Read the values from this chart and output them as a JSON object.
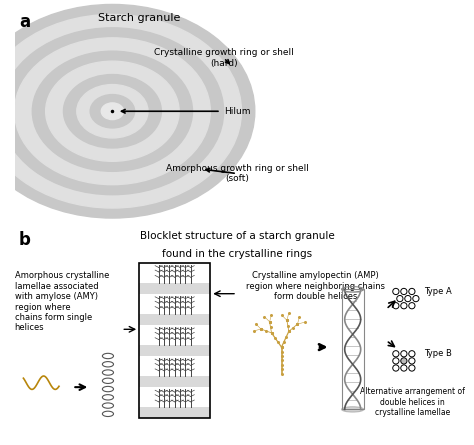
{
  "title_a": "Starch granule",
  "label_a": "a",
  "label_b": "b",
  "title_b1": "Blocklet structure of a starch granule",
  "title_b2": "found in the crystalline rings",
  "annotation_crystalline": "Crystalline growth ring or shell\n(hard)",
  "annotation_hilum": "Hilum",
  "annotation_amorphous": "Amorphous growth ring or shell\n(soft)",
  "annotation_amy_label": "Amorphous crystalline\nlamellae associated\nwith amylose (AMY)\nregion where\nchains form single\nhelices",
  "annotation_amp_label": "Crystalline amylopectin (AMP)\nregion where neighboring chains\nform double helices",
  "annotation_alt": "Alternative arrangement of\ndouble helices in\ncrystalline lamellae",
  "type_a": "Type A",
  "type_b": "Type B",
  "bg_color": "#ffffff",
  "fig_width": 4.74,
  "fig_height": 4.45
}
